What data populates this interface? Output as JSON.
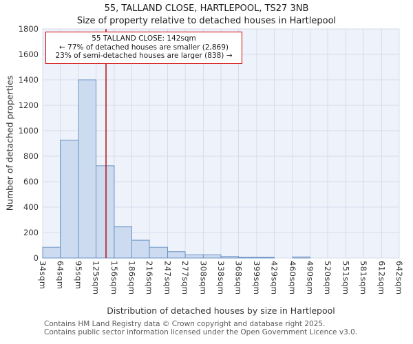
{
  "chart_data": {
    "type": "bar",
    "title": "55, TALLAND CLOSE, HARTLEPOOL, TS27 3NB",
    "subtitle": "Size of property relative to detached houses in Hartlepool",
    "xlabel": "Distribution of detached houses by size in Hartlepool",
    "ylabel": "Number of detached properties",
    "bin_edges_sqm": [
      34,
      64,
      95,
      125,
      156,
      186,
      216,
      247,
      277,
      308,
      338,
      368,
      399,
      429,
      460,
      490,
      520,
      551,
      581,
      612,
      642
    ],
    "x_tick_labels": [
      "34sqm",
      "64sqm",
      "95sqm",
      "125sqm",
      "156sqm",
      "186sqm",
      "216sqm",
      "247sqm",
      "277sqm",
      "308sqm",
      "338sqm",
      "368sqm",
      "399sqm",
      "429sqm",
      "460sqm",
      "490sqm",
      "520sqm",
      "551sqm",
      "581sqm",
      "612sqm",
      "642sqm"
    ],
    "values": [
      85,
      925,
      1400,
      725,
      245,
      140,
      85,
      50,
      25,
      25,
      12,
      5,
      5,
      0,
      8,
      0,
      0,
      0,
      0,
      0
    ],
    "ylim": [
      0,
      1800
    ],
    "y_ticks": [
      0,
      200,
      400,
      600,
      800,
      1000,
      1200,
      1400,
      1600,
      1800
    ],
    "grid": true,
    "legend": null,
    "marker": {
      "value_sqm": 142,
      "color": "#b30000"
    },
    "annotation": {
      "line1": "55 TALLAND CLOSE: 142sqm",
      "line2": "← 77% of detached houses are smaller (2,869)",
      "line3": "23% of semi-detached houses are larger (838) →"
    },
    "colors": {
      "bar_fill": "#ccdbf0",
      "bar_stroke": "#6b91c4",
      "grid": "#d4dcec",
      "plot_bg": "#eef2fa",
      "annotation_border": "#cc0000"
    }
  },
  "footer": {
    "line1": "Contains HM Land Registry data © Crown copyright and database right 2025.",
    "line2": "Contains public sector information licensed under the Open Government Licence v3.0."
  }
}
